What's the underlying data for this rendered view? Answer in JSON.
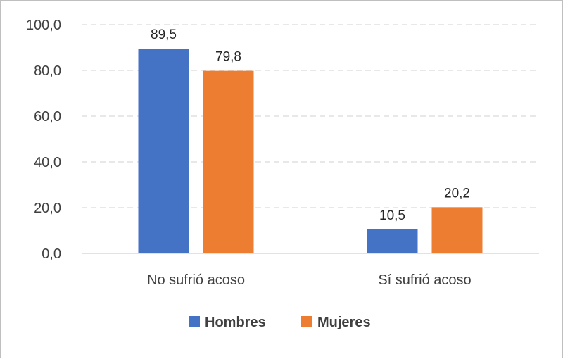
{
  "chart_data": {
    "type": "bar",
    "categories": [
      "No sufrió acoso",
      "Sí sufrió acoso"
    ],
    "series": [
      {
        "name": "Hombres",
        "values": [
          89.5,
          10.5
        ],
        "value_labels": [
          "89,5",
          "10,5"
        ],
        "color": "#4472C4"
      },
      {
        "name": "Mujeres",
        "values": [
          79.8,
          20.2
        ],
        "value_labels": [
          "79,8",
          "20,2"
        ],
        "color": "#ED7D31"
      }
    ],
    "ylim": [
      0,
      100
    ],
    "yticks": [
      0,
      20,
      40,
      60,
      80,
      100
    ],
    "ytick_labels": [
      "0,0",
      "20,0",
      "40,0",
      "60,0",
      "80,0",
      "100,0"
    ],
    "grid": true,
    "legend_position": "bottom",
    "title": "",
    "xlabel": "",
    "ylabel": ""
  }
}
